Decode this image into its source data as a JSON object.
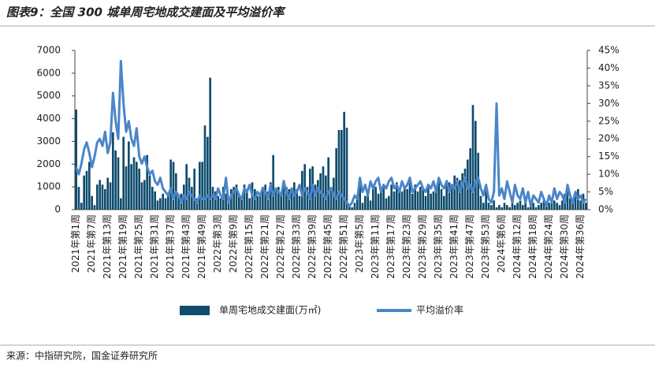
{
  "title": "图表9：全国 300 城单周宅地成交建面及平均溢价率",
  "source": "来源：中指研究院，国金证券研究所",
  "chart_data": {
    "type": "bar-line",
    "categories": [
      "2021年第1周",
      null,
      null,
      null,
      null,
      null,
      "2021年第7周",
      null,
      null,
      null,
      null,
      null,
      "2021年第13周",
      null,
      null,
      null,
      null,
      null,
      "2021年第19周",
      null,
      null,
      null,
      null,
      null,
      "2021年第25周",
      null,
      null,
      null,
      null,
      null,
      "2021年第31周",
      null,
      null,
      null,
      null,
      null,
      "2021年第37周",
      null,
      null,
      null,
      null,
      null,
      "2021年第43周",
      null,
      null,
      null,
      null,
      null,
      "2021年第49周",
      null,
      null,
      null,
      null,
      null,
      "2022年第3周",
      null,
      null,
      null,
      null,
      null,
      "2022年第9周",
      null,
      null,
      null,
      null,
      null,
      "2022年第15周",
      null,
      null,
      null,
      null,
      null,
      "2022年第21周",
      null,
      null,
      null,
      null,
      null,
      "2022年第27周",
      null,
      null,
      null,
      null,
      null,
      "2022年第33周",
      null,
      null,
      null,
      null,
      null,
      "2022年第39周",
      null,
      null,
      null,
      null,
      null,
      "2022年第45周",
      null,
      null,
      null,
      null,
      null,
      "2022年第51周",
      null,
      null,
      null,
      null,
      null,
      "2023年第5周",
      null,
      null,
      null,
      null,
      null,
      "2023年第11周",
      null,
      null,
      null,
      null,
      null,
      "2023年第17周",
      null,
      null,
      null,
      null,
      null,
      "2023年第23周",
      null,
      null,
      null,
      null,
      null,
      "2023年第29周",
      null,
      null,
      null,
      null,
      null,
      "2023年第35周",
      null,
      null,
      null,
      null,
      null,
      "2023年第41周",
      null,
      null,
      null,
      null,
      null,
      "2023年第47周",
      null,
      null,
      null,
      null,
      null,
      "2023年第53周",
      null,
      null,
      null,
      null,
      null,
      "2024年第6周",
      null,
      null,
      null,
      null,
      null,
      "2024年第12周",
      null,
      null,
      null,
      null,
      null,
      "2024年第18周",
      null,
      null,
      null,
      null,
      null,
      "2024年第24周",
      null,
      null,
      null,
      null,
      null,
      "2024年第30周",
      null,
      null,
      null,
      null,
      null,
      "2024年第36周",
      null,
      null
    ],
    "series": [
      {
        "name": "单周宅地成交建面(万㎡)",
        "color": "#0f4c6e",
        "values": [
          4400,
          1000,
          300,
          1500,
          1700,
          2100,
          600,
          200,
          1100,
          1300,
          1100,
          900,
          1400,
          1200,
          3400,
          2600,
          2300,
          500,
          3200,
          1900,
          3000,
          2000,
          2300,
          2100,
          1800,
          1200,
          1300,
          2400,
          1500,
          1000,
          800,
          400,
          500,
          700,
          500,
          600,
          2200,
          2100,
          1600,
          600,
          700,
          1100,
          2000,
          1400,
          1000,
          1800,
          500,
          2100,
          2100,
          3700,
          3200,
          5800,
          1000,
          800,
          600,
          500,
          1000,
          700,
          400,
          900,
          1000,
          1100,
          700,
          600,
          1100,
          800,
          500,
          1200,
          900,
          600,
          700,
          1000,
          1100,
          800,
          1200,
          2400,
          900,
          1000,
          700,
          1300,
          1000,
          900,
          800,
          1200,
          900,
          600,
          1700,
          2000,
          1000,
          1800,
          1900,
          1100,
          1300,
          1600,
          1900,
          1500,
          2300,
          1000,
          1400,
          2700,
          3500,
          3500,
          4300,
          3600,
          200,
          100,
          300,
          600,
          1200,
          300,
          600,
          800,
          400,
          900,
          1000,
          700,
          800,
          1000,
          500,
          600,
          1100,
          800,
          1200,
          900,
          800,
          1000,
          900,
          1200,
          700,
          1100,
          800,
          1000,
          900,
          600,
          1100,
          700,
          800,
          1000,
          1200,
          900,
          600,
          1300,
          1200,
          1100,
          1500,
          1400,
          1300,
          1600,
          1800,
          2200,
          2700,
          4600,
          3900,
          2500,
          600,
          300,
          900,
          300,
          200,
          400,
          100,
          200,
          100,
          300,
          200,
          100,
          300,
          200,
          300,
          400,
          200,
          300,
          100,
          200,
          300,
          100,
          200,
          300,
          400,
          200,
          300,
          500,
          400,
          300,
          200,
          400,
          700,
          800,
          500,
          300,
          600,
          900,
          400,
          700,
          300
        ]
      },
      {
        "name": "平均溢价率",
        "color": "#4a86c8",
        "axis": "y2",
        "values": [
          12,
          10,
          13,
          17,
          19,
          16,
          12,
          15,
          19,
          20,
          18,
          22,
          16,
          19,
          33,
          25,
          20,
          42,
          30,
          22,
          25,
          20,
          18,
          23,
          15,
          13,
          15,
          12,
          10,
          11,
          8,
          7,
          9,
          6,
          5,
          4,
          6,
          3,
          5,
          4,
          2,
          4,
          3,
          5,
          4,
          3,
          2,
          4,
          3,
          3,
          4,
          3,
          4,
          3,
          6,
          4,
          3,
          9,
          2,
          4,
          5,
          6,
          4,
          3,
          6,
          5,
          7,
          4,
          3,
          5,
          4,
          6,
          5,
          3,
          7,
          4,
          6,
          5,
          4,
          8,
          5,
          3,
          6,
          4,
          5,
          7,
          4,
          6,
          5,
          3,
          7,
          4,
          6,
          5,
          4,
          3,
          5,
          6,
          4,
          3,
          5,
          4,
          3,
          2,
          1,
          2,
          4,
          3,
          9,
          5,
          7,
          4,
          8,
          6,
          8,
          9,
          5,
          7,
          6,
          8,
          9,
          6,
          7,
          5,
          8,
          6,
          7,
          9,
          5,
          6,
          7,
          8,
          6,
          5,
          7,
          6,
          8,
          5,
          9,
          7,
          6,
          8,
          5,
          7,
          6,
          8,
          5,
          7,
          9,
          6,
          7,
          5,
          8,
          9,
          6,
          4,
          7,
          3,
          2,
          5,
          30,
          4,
          6,
          3,
          8,
          5,
          2,
          7,
          4,
          3,
          6,
          2,
          5,
          1,
          4,
          3,
          2,
          5,
          3,
          1,
          4,
          2,
          6,
          3,
          5,
          4,
          2,
          7,
          4,
          2,
          5,
          3,
          4,
          2,
          3
        ]
      }
    ],
    "ylim": [
      0,
      7000
    ],
    "yticks": [
      0,
      1000,
      2000,
      3000,
      4000,
      5000,
      6000,
      7000
    ],
    "y2lim": [
      0,
      45
    ],
    "y2ticks": [
      {
        "value": 0,
        "label": "0%"
      },
      {
        "value": 5,
        "label": "5%"
      },
      {
        "value": 10,
        "label": "10%"
      },
      {
        "value": 15,
        "label": "15%"
      },
      {
        "value": 20,
        "label": "20%"
      },
      {
        "value": 25,
        "label": "25%"
      },
      {
        "value": 30,
        "label": "30%"
      },
      {
        "value": 35,
        "label": "35%"
      },
      {
        "value": 40,
        "label": "40%"
      },
      {
        "value": 45,
        "label": "45%"
      }
    ]
  }
}
